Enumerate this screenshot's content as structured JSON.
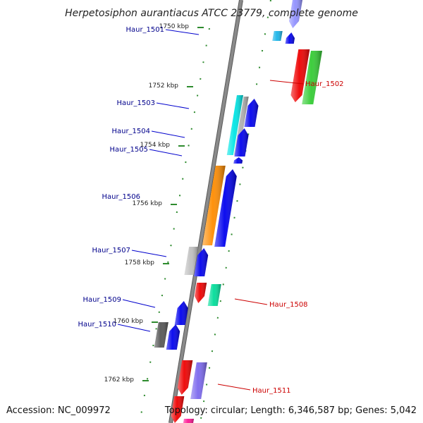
{
  "title": "Herpetosiphon aurantiacus ATCC 23779, complete genome",
  "accession": "Accession: NC_009972",
  "topology": "Topology: circular; Length: 6,346,587 bp; Genes: 5,042",
  "colors": {
    "backbone": "#8a8a8a",
    "tick": "#2e8b2e",
    "left_label": "#00008b",
    "right_label": "#cc0000",
    "left_line": "#0000cd",
    "right_line": "#cc0000"
  },
  "kbp_ticks": [
    {
      "label": "1750 kbp",
      "pos_kbp": 1750
    },
    {
      "label": "1752 kbp",
      "pos_kbp": 1752
    },
    {
      "label": "1754 kbp",
      "pos_kbp": 1754
    },
    {
      "label": "1756 kbp",
      "pos_kbp": 1756
    },
    {
      "label": "1758 kbp",
      "pos_kbp": 1758
    },
    {
      "label": "1760 kbp",
      "pos_kbp": 1760
    },
    {
      "label": "1762 kbp",
      "pos_kbp": 1762
    }
  ],
  "genes": [
    {
      "name": "Haur_1501",
      "strand": "left"
    },
    {
      "name": "Haur_1502",
      "strand": "right"
    },
    {
      "name": "Haur_1503",
      "strand": "left"
    },
    {
      "name": "Haur_1504",
      "strand": "left"
    },
    {
      "name": "Haur_1505",
      "strand": "left"
    },
    {
      "name": "Haur_1506",
      "strand": "left"
    },
    {
      "name": "Haur_1507",
      "strand": "left"
    },
    {
      "name": "Haur_1508",
      "strand": "right"
    },
    {
      "name": "Haur_1509",
      "strand": "left"
    },
    {
      "name": "Haur_1510",
      "strand": "left"
    },
    {
      "name": "Haur_1511",
      "strand": "right"
    }
  ]
}
